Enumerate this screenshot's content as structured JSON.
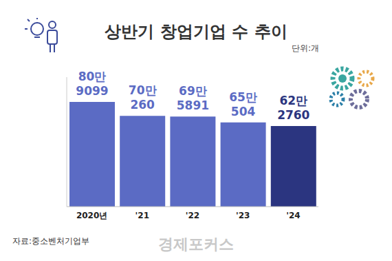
{
  "chart_data": {
    "type": "bar",
    "title": "상반기 창업기업 수 추이",
    "unit": "단위:개",
    "source": "자료:중소벤처기업부",
    "watermark": "경제포커스",
    "categories": [
      "2020년",
      "'21",
      "'22",
      "'23",
      "'24"
    ],
    "values": [
      809099,
      700260,
      695891,
      650504,
      622760
    ],
    "value_labels": [
      "80만\n9099",
      "70만\n260",
      "69만\n5891",
      "65만\n504",
      "62만\n2760"
    ],
    "colors": [
      "#5b6bc4",
      "#5b6bc4",
      "#5b6bc4",
      "#5b6bc4",
      "#2b3580"
    ],
    "ylim": [
      0,
      1000000
    ],
    "yticks": [],
    "grid": false,
    "data_labels": true,
    "tick_labels": "x"
  }
}
